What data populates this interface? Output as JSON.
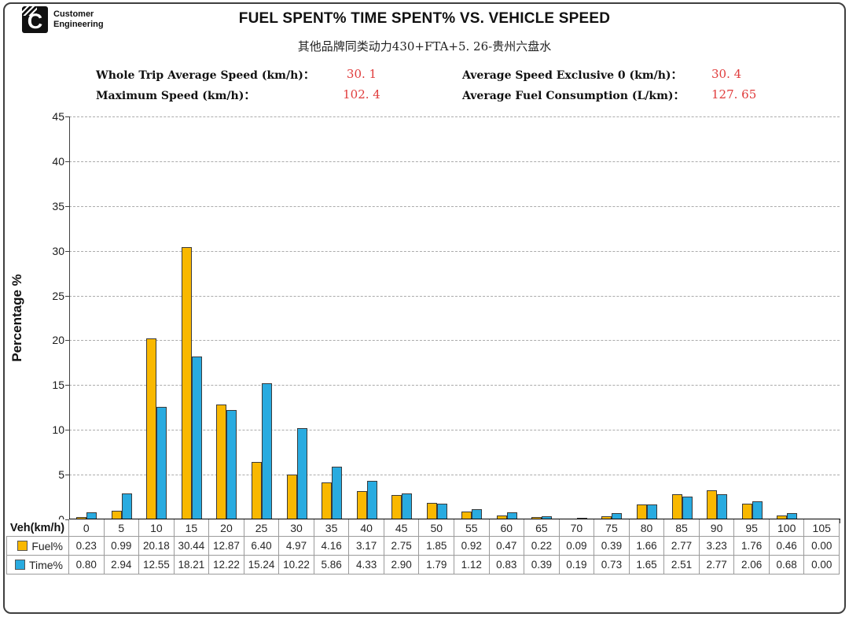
{
  "logo": {
    "brand": "Cummins",
    "line1": "Customer",
    "line2": "Engineering"
  },
  "header": {
    "title": "FUEL SPENT% TIME SPENT% VS. VEHICLE SPEED",
    "subtitle": "其他品牌同类动力430+FTA+5. 26-贵州六盘水"
  },
  "stats": {
    "value_color": "#e03c3c",
    "left": [
      {
        "label": "Whole Trip Average Speed (km/h)：",
        "value": "30. 1"
      },
      {
        "label": "Maximum Speed (km/h)：",
        "value": "102. 4"
      }
    ],
    "right": [
      {
        "label": "Average Speed Exclusive 0 (km/h)：",
        "value": "30. 4"
      },
      {
        "label": "Average Fuel Consumption (L/km)：",
        "value": "127. 65"
      }
    ]
  },
  "chart_data": {
    "type": "bar",
    "title": "FUEL SPENT% TIME SPENT% VS. VEHICLE SPEED",
    "xlabel": "Veh(km/h)",
    "ylabel": "Percentage %",
    "ylim": [
      0,
      45
    ],
    "ytick_step": 5,
    "grid": true,
    "legend_position": "data-table-left",
    "categories": [
      "0",
      "5",
      "10",
      "15",
      "20",
      "25",
      "30",
      "35",
      "40",
      "45",
      "50",
      "55",
      "60",
      "65",
      "70",
      "75",
      "80",
      "85",
      "90",
      "95",
      "100",
      "105"
    ],
    "series": [
      {
        "name": "Fuel%",
        "color": "#F9B800",
        "border": "#3a3a3a",
        "values": [
          0.23,
          0.99,
          20.18,
          30.44,
          12.87,
          6.4,
          4.97,
          4.16,
          3.17,
          2.75,
          1.85,
          0.92,
          0.47,
          0.22,
          0.09,
          0.39,
          1.66,
          2.77,
          3.23,
          1.76,
          0.46,
          0.0
        ]
      },
      {
        "name": "Time%",
        "color": "#29ABE0",
        "border": "#3a3a3a",
        "values": [
          0.8,
          2.94,
          12.55,
          18.21,
          12.22,
          15.24,
          10.22,
          5.86,
          4.33,
          2.9,
          1.79,
          1.12,
          0.83,
          0.39,
          0.19,
          0.73,
          1.65,
          2.51,
          2.77,
          2.06,
          0.68,
          0.0
        ]
      }
    ]
  }
}
